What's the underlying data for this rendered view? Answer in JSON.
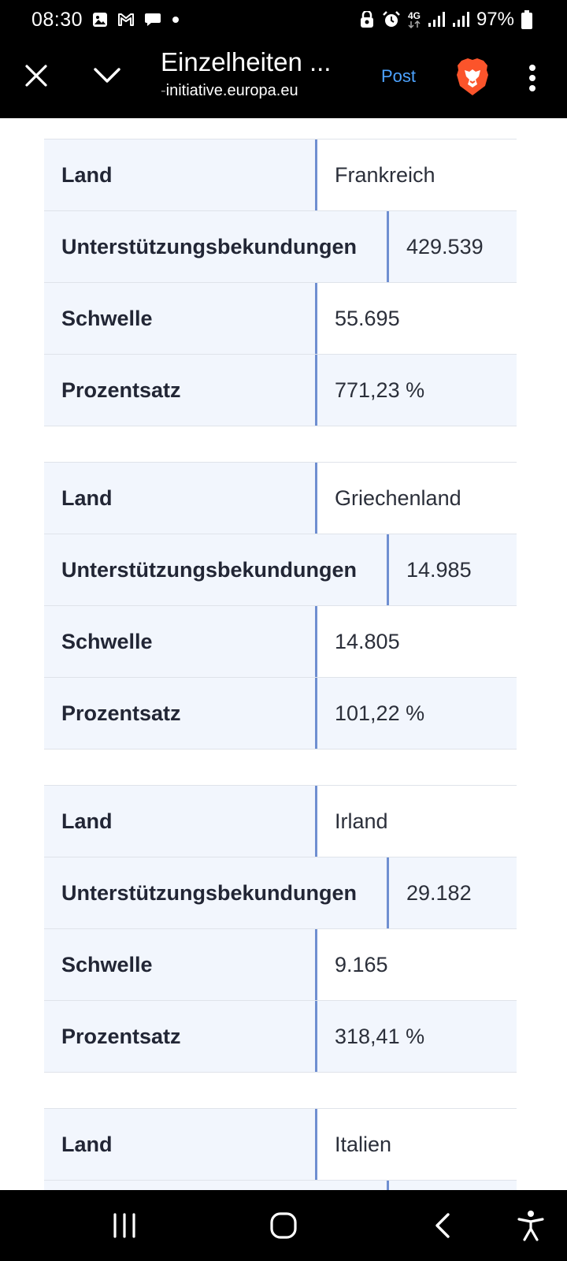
{
  "status_bar": {
    "time": "08:30",
    "battery": "97%",
    "network": "4G",
    "icons": [
      "gallery-icon",
      "gmail-icon",
      "chat-icon",
      "dot-icon",
      "vpn-icon",
      "alarm-icon",
      "signal-icon",
      "signal-icon",
      "battery-icon"
    ]
  },
  "app_bar": {
    "title": "Einzelheiten ...",
    "url_prefix": "-",
    "url": "initiative.europa.eu",
    "post_label": "Post",
    "icons": [
      "close-icon",
      "chevron-down-icon",
      "brave-lion-icon",
      "more-vertical-icon"
    ]
  },
  "tables": [
    {
      "rows": [
        {
          "label": "Land",
          "value": "Frankreich"
        },
        {
          "label": "Unterstützungsbekundungen",
          "value": "429.539"
        },
        {
          "label": "Schwelle",
          "value": "55.695"
        },
        {
          "label": "Prozentsatz",
          "value": "771,23 %"
        }
      ]
    },
    {
      "rows": [
        {
          "label": "Land",
          "value": "Griechenland"
        },
        {
          "label": "Unterstützungsbekundungen",
          "value": "14.985"
        },
        {
          "label": "Schwelle",
          "value": "14.805"
        },
        {
          "label": "Prozentsatz",
          "value": "101,22 %"
        }
      ]
    },
    {
      "rows": [
        {
          "label": "Land",
          "value": "Irland"
        },
        {
          "label": "Unterstützungsbekundungen",
          "value": "29.182"
        },
        {
          "label": "Schwelle",
          "value": "9.165"
        },
        {
          "label": "Prozentsatz",
          "value": "318,41 %"
        }
      ]
    },
    {
      "rows": [
        {
          "label": "Land",
          "value": "Italien"
        }
      ]
    }
  ],
  "nav_bar": {
    "icons": [
      "recent-apps-icon",
      "home-icon",
      "back-icon",
      "accessibility-icon"
    ]
  },
  "colors": {
    "label_bg": "#f2f6fd",
    "divider": "#6f8fd1",
    "link": "#4da3ff",
    "brave": "#fb542b"
  }
}
